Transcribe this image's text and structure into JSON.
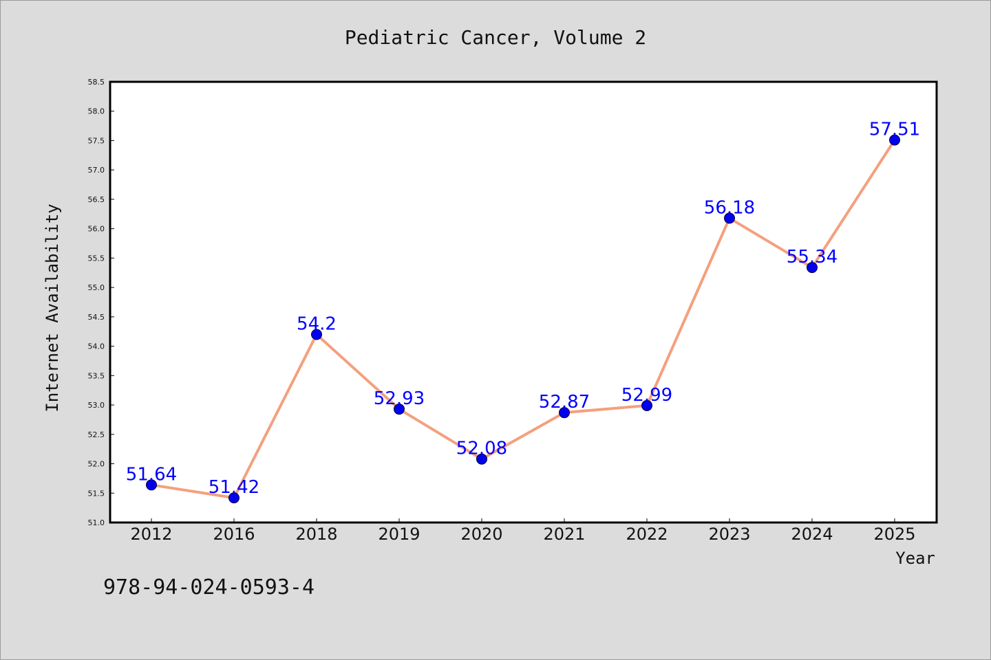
{
  "chart_data": {
    "type": "line",
    "title": "Pediatric Cancer, Volume 2",
    "xlabel": "Year",
    "ylabel": "Internet Availability",
    "categories": [
      "2012",
      "2016",
      "2018",
      "2019",
      "2020",
      "2021",
      "2022",
      "2023",
      "2024",
      "2025"
    ],
    "values": [
      51.64,
      51.42,
      54.2,
      52.93,
      52.08,
      52.87,
      52.99,
      56.18,
      55.34,
      57.51
    ],
    "data_labels": [
      "51.64",
      "51.42",
      "54.2",
      "52.93",
      "52.08",
      "52.87",
      "52.99",
      "56.18",
      "55.34",
      "57.51"
    ],
    "ylim": [
      51.0,
      58.5
    ],
    "yticks": [
      "51.0",
      "51.5",
      "52.0",
      "52.5",
      "53.0",
      "53.5",
      "54.0",
      "54.5",
      "55.0",
      "55.5",
      "56.0",
      "56.5",
      "57.0",
      "57.5",
      "58.0",
      "58.5"
    ],
    "grid": false,
    "legend": "none",
    "colors": {
      "line": "#f4a07e",
      "marker": "#0000ee",
      "data_label": "#0000ff",
      "plot_background": "#ffffff",
      "figure_background": "#dcdcdc"
    }
  },
  "footer": {
    "isbn": "978-94-024-0593-4"
  }
}
